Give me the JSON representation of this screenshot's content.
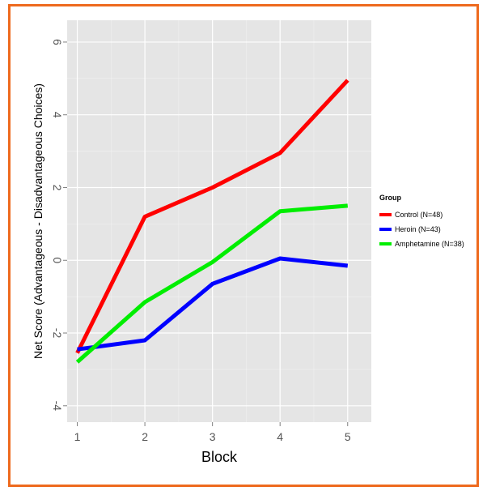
{
  "chart_data": {
    "type": "line",
    "xlabel": "Block",
    "ylabel": "Net Score (Advantageous - Disadvantageous Choices)",
    "x": [
      1,
      2,
      3,
      4,
      5
    ],
    "xlim": [
      0.85,
      5.35
    ],
    "ylim": [
      -4.45,
      6.6
    ],
    "x_ticks": [
      1,
      2,
      3,
      4,
      5
    ],
    "y_ticks": [
      -4,
      -2,
      0,
      2,
      4,
      6
    ],
    "grid": true,
    "background": "#e5e5e5",
    "legend": {
      "title": "Group",
      "placement": "right"
    },
    "series": [
      {
        "name": "Control (N=48)",
        "color": "#ff0000",
        "values": [
          -2.55,
          1.2,
          2.0,
          2.95,
          4.95
        ]
      },
      {
        "name": "Heroin (N=43)",
        "color": "#0000ff",
        "values": [
          -2.45,
          -2.2,
          -0.65,
          0.05,
          -0.15
        ]
      },
      {
        "name": "Amphetamine (N=38)",
        "color": "#00ee00",
        "values": [
          -2.8,
          -1.15,
          -0.05,
          1.35,
          1.5
        ]
      }
    ]
  }
}
